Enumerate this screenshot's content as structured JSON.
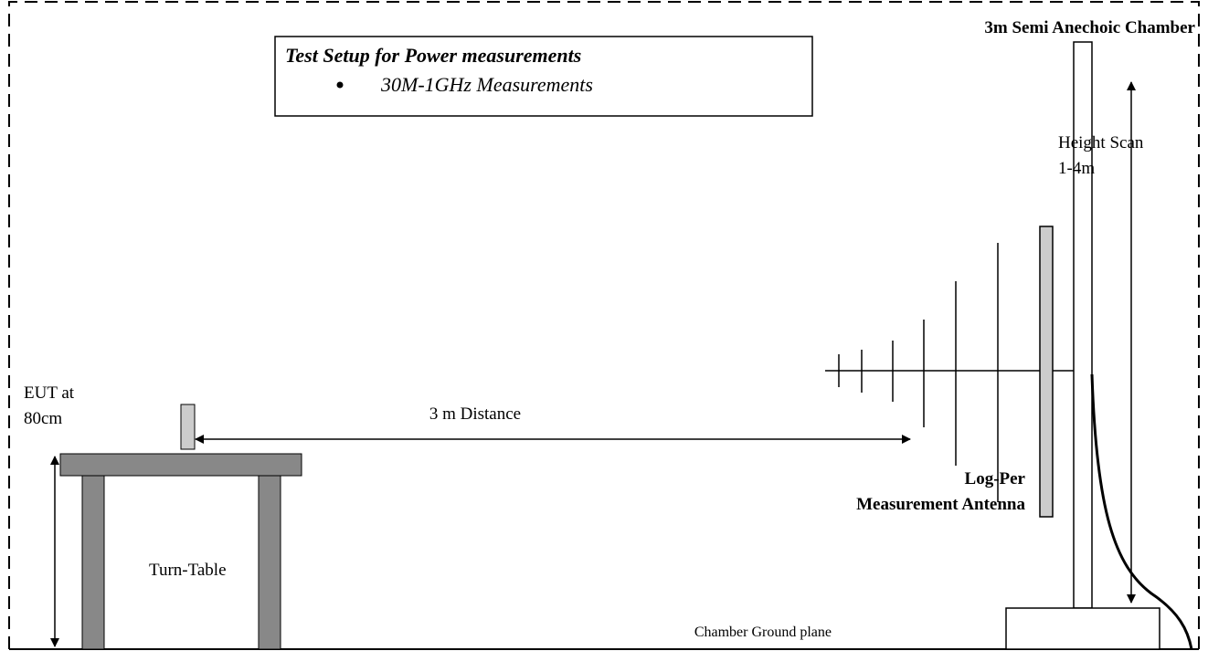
{
  "title_box": {
    "title": "Test Setup for Power measurements",
    "bullet": "30M-1GHz Measurements"
  },
  "chamber_label": "3m Semi Anechoic Chamber",
  "height_scan": {
    "line1": "Height Scan",
    "line2": "1-4m"
  },
  "eut_label": {
    "line1": "EUT at",
    "line2": "80cm"
  },
  "distance_label": "3 m Distance",
  "table_label": "Turn-Table",
  "antenna_label": {
    "line1": "Log-Per",
    "line2": "Measurement Antenna"
  },
  "ground_label": "Chamber Ground plane"
}
